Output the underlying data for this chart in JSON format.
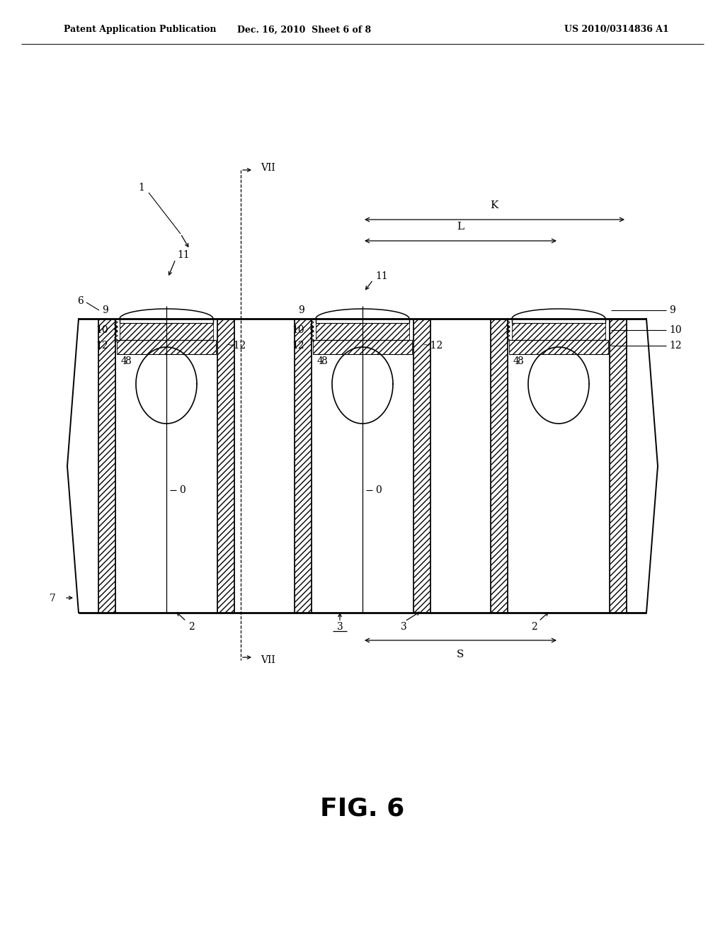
{
  "bg_color": "#ffffff",
  "header_left": "Patent Application Publication",
  "header_mid": "Dec. 16, 2010  Sheet 6 of 8",
  "header_right": "US 2010/0314836 A1",
  "figure_label": "FIG. 6"
}
